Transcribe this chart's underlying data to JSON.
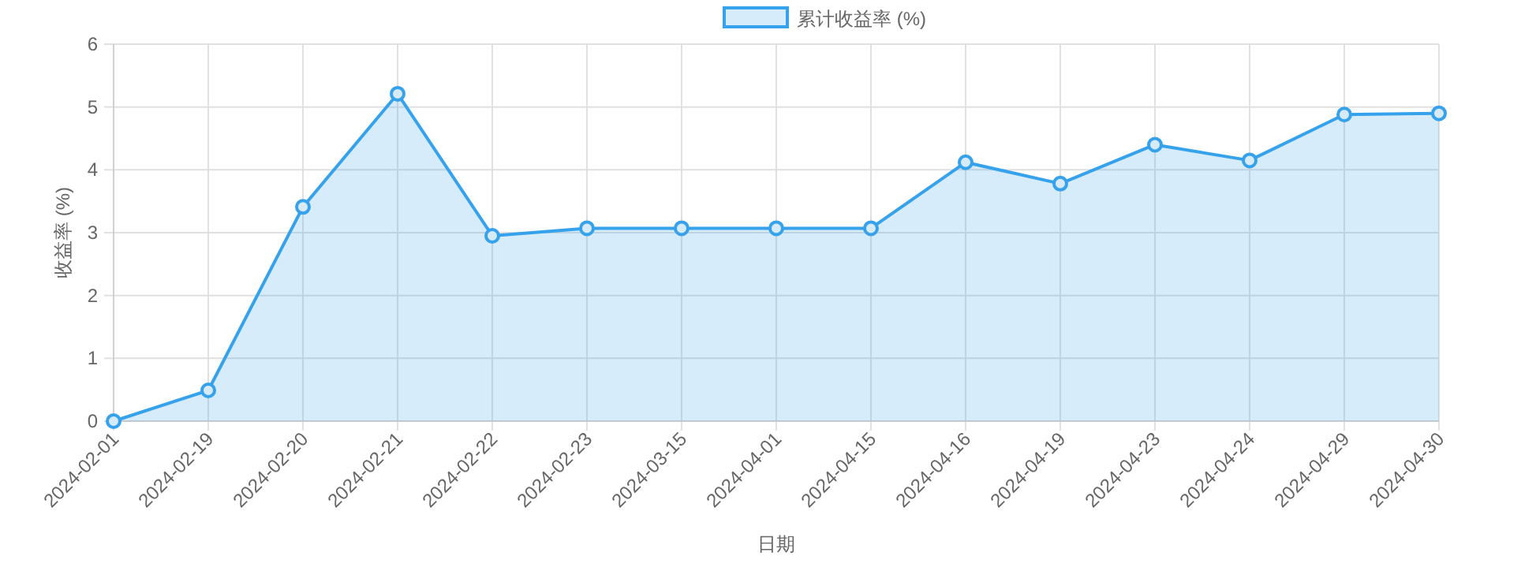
{
  "chart_data": {
    "type": "area",
    "xlabel": "日期",
    "ylabel": "收益率 (%)",
    "categories": [
      "2024-02-01",
      "2024-02-19",
      "2024-02-20",
      "2024-02-21",
      "2024-02-22",
      "2024-02-23",
      "2024-03-15",
      "2024-04-01",
      "2024-04-15",
      "2024-04-16",
      "2024-04-19",
      "2024-04-23",
      "2024-04-24",
      "2024-04-29",
      "2024-04-30"
    ],
    "series": [
      {
        "name": "累计收益率 (%)",
        "color": "#36a2eb",
        "values": [
          0,
          0.49,
          3.41,
          5.21,
          2.95,
          3.07,
          3.07,
          3.07,
          3.07,
          4.12,
          3.78,
          4.4,
          4.15,
          4.88,
          4.9
        ]
      }
    ],
    "ylim": [
      0,
      6
    ],
    "yticks": [
      0,
      1,
      2,
      3,
      4,
      5,
      6
    ],
    "grid": true,
    "legend": "top",
    "marker": "circle"
  }
}
